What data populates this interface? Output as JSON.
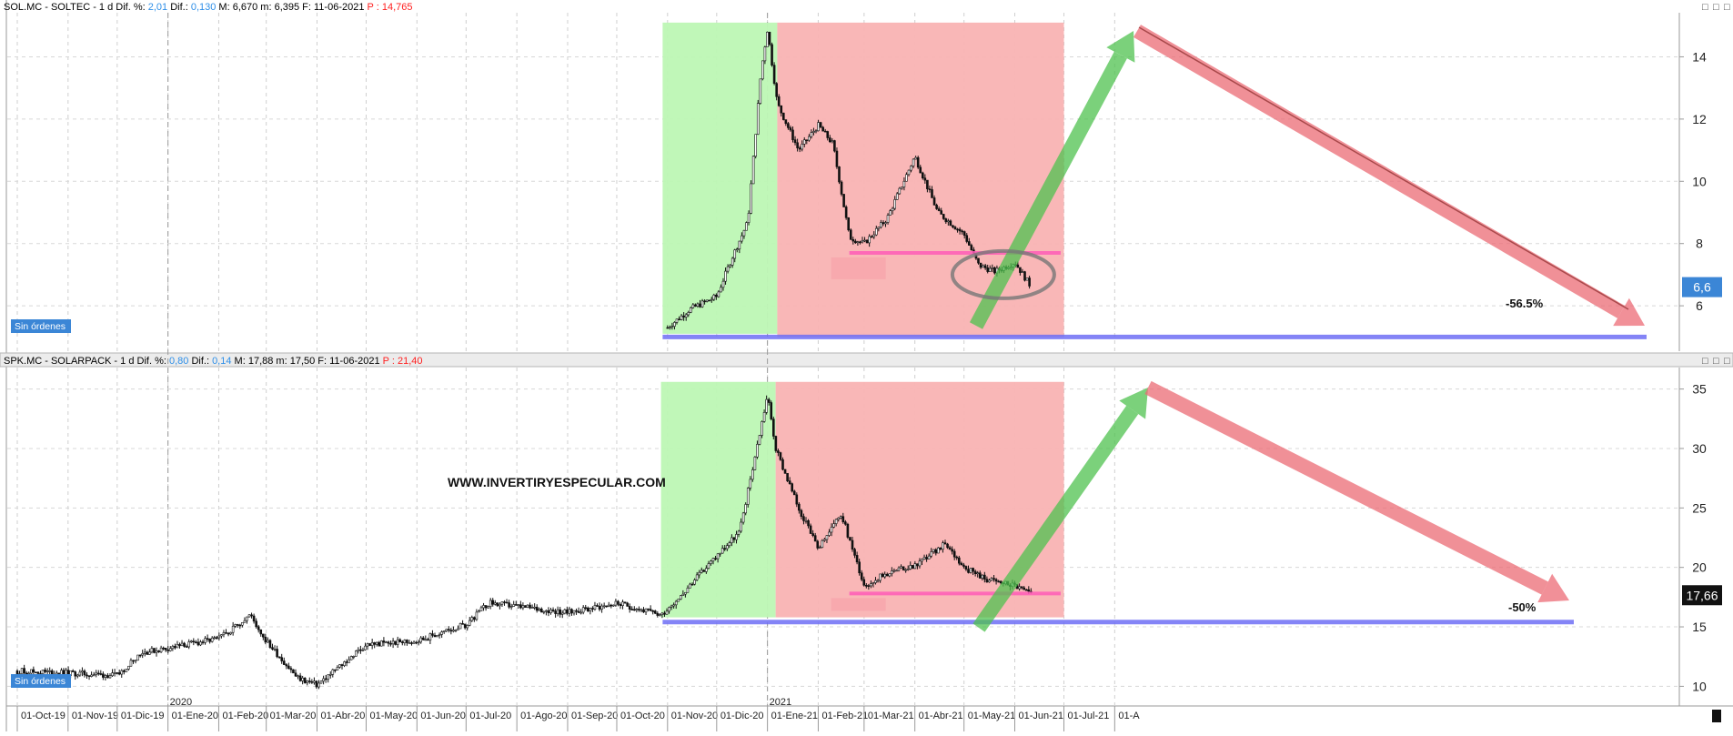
{
  "colors": {
    "rise_zone": "#bdf7b4",
    "fall_zone": "#f9b3b3",
    "rise_arrow": "#4fc24f",
    "fall_arrow": "#ec6b75",
    "support_line": "#ff5cb8",
    "base_line": "#6f6ff5",
    "badge_bg": "#3b86d6",
    "price_blue": "#2f8fe8",
    "price_red": "#ff2020"
  },
  "ui": {
    "no_orders_label": "Sin órdenes",
    "watermark": "WWW.INVERTIRYESPECULAR.COM",
    "panel_buttons": [
      "□",
      "□",
      "□"
    ]
  },
  "panels": [
    {
      "header": {
        "symbol": "SOL.MC - SOLTEC -  1 d",
        "dif_pct_label": "Dif. %:",
        "dif_pct": "2,01",
        "dif_label": "Dif.:",
        "dif": "0,130",
        "high_label": "M:",
        "high": "6,670",
        "low_label": "m:",
        "low": "6,395",
        "date_label": "F:",
        "date": "11-06-2021",
        "price_label": "P :",
        "price": "14,765"
      },
      "last_price_badge": "6,6",
      "annotation": "-56.5%"
    },
    {
      "header": {
        "symbol": "SPK.MC - SOLARPACK -  1 d",
        "dif_pct_label": "Dif. %:",
        "dif_pct": "0,80",
        "dif_label": "Dif.:",
        "dif": "0,14",
        "high_label": "M:",
        "high": "17,88",
        "low_label": "m:",
        "low": "17,50",
        "date_label": "F:",
        "date": "11-06-2021",
        "price_label": "P :",
        "price": "21,40"
      },
      "last_price_badge": "17,66",
      "annotation": "-50%"
    }
  ],
  "x_axis": {
    "tick_labels": [
      "01-Oct-19",
      "01-Nov-19",
      "01-Dic-19",
      "01-Ene-20",
      "01-Feb-20",
      "01-Mar-20",
      "01-Abr-20",
      "01-May-20",
      "01-Jun-20",
      "01-Jul-20",
      "01-Ago-20",
      "01-Sep-20",
      "01-Oct-20",
      "01-Nov-20",
      "01-Dic-20",
      "01-Ene-21",
      "01-Feb-21",
      "01-Mar-21",
      "01-Abr-21",
      "01-May-21",
      "01-Jun-21",
      "01-Jul-21",
      "01-A"
    ],
    "year_labels": [
      "2020",
      "2021"
    ]
  },
  "chart_data": [
    {
      "type": "candlestick",
      "series_name": "SOL.MC - SOLTEC",
      "ylim": [
        4.6,
        15.3
      ],
      "y_ticks": [
        "6",
        "8",
        "10",
        "12",
        "14"
      ],
      "grid": true,
      "x": [
        "2020-11-01",
        "2020-11-15",
        "2020-12-01",
        "2020-12-10",
        "2020-12-20",
        "2020-12-28",
        "2021-01-01",
        "2021-01-07",
        "2021-01-20",
        "2021-02-01",
        "2021-02-10",
        "2021-02-20",
        "2021-03-01",
        "2021-03-15",
        "2021-04-01",
        "2021-04-15",
        "2021-05-01",
        "2021-05-10",
        "2021-05-20",
        "2021-06-01",
        "2021-06-11"
      ],
      "close": [
        5.3,
        5.9,
        6.3,
        7.5,
        8.7,
        13.5,
        14.9,
        12.5,
        11.0,
        11.8,
        11.2,
        8.2,
        8.0,
        8.8,
        10.8,
        9.0,
        8.3,
        7.3,
        7.1,
        7.4,
        6.6
      ],
      "annotations": {
        "change_label": "-56.5%",
        "support_level": 7.7,
        "base_level": 5.0,
        "rise_zone": {
          "from": "2020-10-29",
          "to": "2021-01-07",
          "low": 5.1,
          "high": 15.1
        },
        "fall_zone": {
          "from": "2021-01-07",
          "to": "2021-07-01",
          "low": 5.0,
          "high": 15.1
        },
        "circled_area": {
          "from": "2021-05-10",
          "to": "2021-06-15",
          "center": 7.0
        }
      }
    },
    {
      "type": "candlestick",
      "series_name": "SPK.MC - SOLARPACK",
      "ylim": [
        8.5,
        36.5
      ],
      "y_ticks": [
        "10",
        "15",
        "20",
        "25",
        "30",
        "35"
      ],
      "grid": true,
      "x": [
        "2019-10-01",
        "2019-11-01",
        "2019-12-01",
        "2019-12-15",
        "2020-01-01",
        "2020-02-01",
        "2020-02-20",
        "2020-03-01",
        "2020-03-20",
        "2020-04-01",
        "2020-05-01",
        "2020-06-01",
        "2020-07-01",
        "2020-07-15",
        "2020-08-01",
        "2020-09-01",
        "2020-10-01",
        "2020-10-28",
        "2020-11-15",
        "2020-12-01",
        "2020-12-15",
        "2021-01-01",
        "2021-01-06",
        "2021-01-20",
        "2021-02-01",
        "2021-02-15",
        "2021-03-01",
        "2021-03-15",
        "2021-04-01",
        "2021-04-20",
        "2021-05-01",
        "2021-05-15",
        "2021-06-01",
        "2021-06-11"
      ],
      "close": [
        11.3,
        11.1,
        10.9,
        12.8,
        13.2,
        14.0,
        16.0,
        13.8,
        10.7,
        10.1,
        13.5,
        13.8,
        15.2,
        17.0,
        16.7,
        16.2,
        17.0,
        16.0,
        18.5,
        21.0,
        23.0,
        34.5,
        30.0,
        25.0,
        21.5,
        24.5,
        18.5,
        19.5,
        20.2,
        22.0,
        20.0,
        19.0,
        18.5,
        17.7
      ],
      "annotations": {
        "change_label": "-50%",
        "support_level": 17.8,
        "base_level": 15.4,
        "rise_zone": {
          "from": "2020-10-28",
          "to": "2021-01-06",
          "low": 15.8,
          "high": 35.6
        },
        "fall_zone": {
          "from": "2021-01-06",
          "to": "2021-07-01",
          "low": 15.8,
          "high": 35.6
        }
      }
    }
  ]
}
